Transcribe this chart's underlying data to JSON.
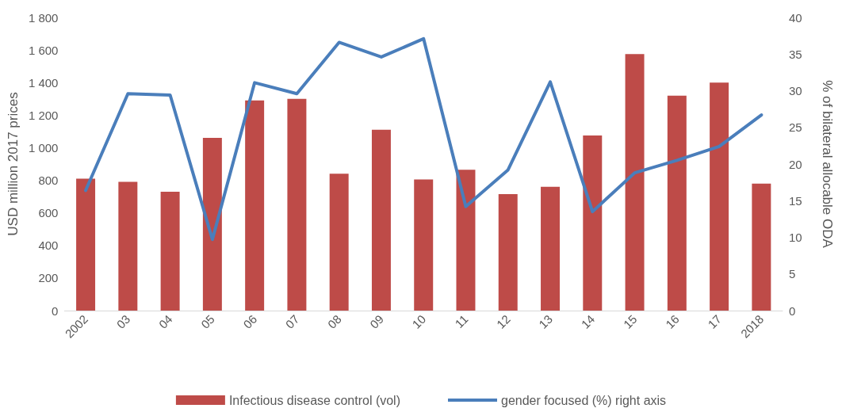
{
  "chart_data": {
    "type": "bar",
    "ylabel": "USD million 2017 prices",
    "y2label": "% of bilateral allocable ODA",
    "categories": [
      "2002",
      "03",
      "04",
      "05",
      "06",
      "07",
      "08",
      "09",
      "10",
      "11",
      "12",
      "13",
      "14",
      "15",
      "16",
      "17",
      "2018"
    ],
    "series": [
      {
        "name": "Infectious disease control (vol)",
        "color": "#be4b48",
        "values": [
          810,
          790,
          730,
          1060,
          1290,
          1300,
          840,
          1110,
          805,
          865,
          715,
          760,
          1075,
          1575,
          1320,
          1400,
          780
        ]
      },
      {
        "name": "gender focused (%) right axis",
        "type": "line",
        "axis": "y2",
        "color": "#4a7ebb",
        "values": [
          16.4,
          29.6,
          29.4,
          9.7,
          31.1,
          29.6,
          36.6,
          34.6,
          37.1,
          14.2,
          19.2,
          31.2,
          13.5,
          18.8,
          20.5,
          22.4,
          26.7
        ]
      }
    ],
    "ylim": [
      0,
      1800
    ],
    "yticks": [
      0,
      200,
      400,
      600,
      800,
      {
        "value": 1000,
        "label": "1 000"
      },
      {
        "value": 1200,
        "label": "1 200"
      },
      {
        "value": 1400,
        "label": "1 400"
      },
      {
        "value": 1600,
        "label": "1 600"
      },
      {
        "value": 1800,
        "label": "1 800"
      }
    ],
    "y2lim": [
      0,
      40
    ],
    "y2ticks": [
      0,
      5,
      10,
      15,
      20,
      25,
      30,
      35,
      40
    ],
    "grid": false,
    "legend": "bottom",
    "marker": "none",
    "line_style": "solid"
  }
}
